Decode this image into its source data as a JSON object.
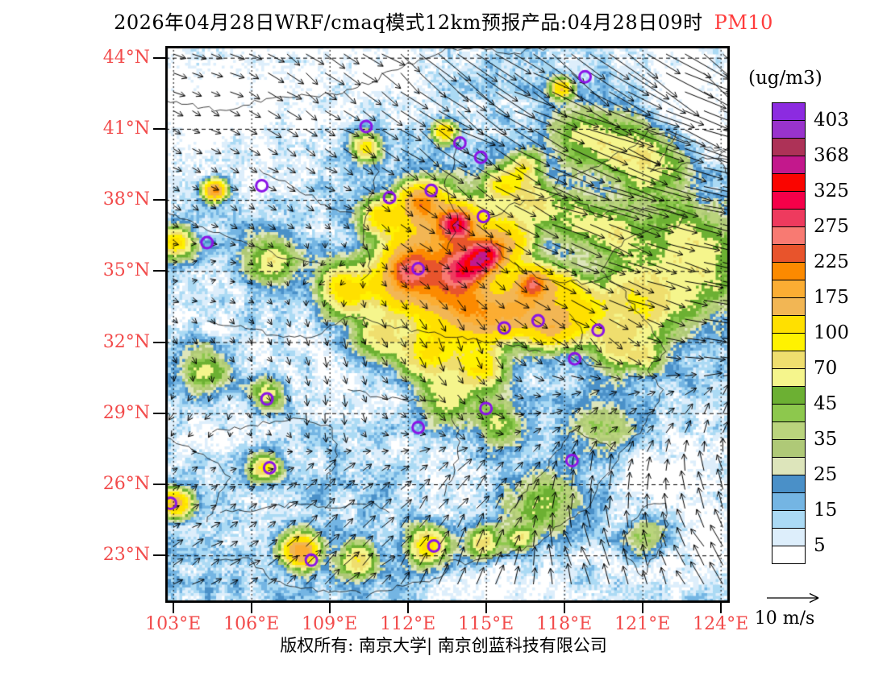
{
  "title": {
    "text": "2026年04月28日WRF/cmaq模式12km预报产品:04月28日09时",
    "pollutant": "PM10"
  },
  "colors": {
    "axis_label": "#F24B4B",
    "pollutant": "#FF3B3B",
    "station": "#8A14E6",
    "boundary": "#101010",
    "arrow": "#000000"
  },
  "axes": {
    "lat_labels": [
      "44°N",
      "41°N",
      "38°N",
      "35°N",
      "32°N",
      "29°N",
      "26°N",
      "23°N"
    ],
    "lat_values": [
      44,
      41,
      38,
      35,
      32,
      29,
      26,
      23
    ],
    "lon_labels": [
      "103°E",
      "106°E",
      "109°E",
      "112°E",
      "115°E",
      "118°E",
      "121°E",
      "124°E"
    ],
    "lon_values": [
      103,
      106,
      109,
      112,
      115,
      118,
      121,
      124
    ]
  },
  "legend": {
    "units_label": "(ug/m3)",
    "tick_labels": [
      "403",
      "368",
      "325",
      "275",
      "225",
      "175",
      "100",
      "70",
      "45",
      "35",
      "25",
      "15",
      "5"
    ],
    "labeled_after_cell": [
      0,
      2,
      4,
      6,
      8,
      10,
      12,
      14,
      16,
      18,
      20,
      22,
      24
    ],
    "cells": [
      "#8C2BE0",
      "#9933CC",
      "#AD3257",
      "#C3188C",
      "#FA0500",
      "#F50049",
      "#EE3A5E",
      "#F87A72",
      "#E8542C",
      "#FC8A00",
      "#FBAD33",
      "#F2B654",
      "#FFE000",
      "#FFF200",
      "#EFDE6E",
      "#F5F58C",
      "#6CB033",
      "#8DC84D",
      "#BAD47D",
      "#AFC977",
      "#DDE5BB",
      "#4A90C8",
      "#74B5E3",
      "#ABDAF4",
      "#DDEEFB",
      "#FFFFFF"
    ]
  },
  "wind_scale": {
    "label": "10 m/s"
  },
  "footer": {
    "text": "版权所有: 南京大学| 南京创蓝科技有限公司"
  },
  "map": {
    "lon_range": [
      102.7,
      124.35
    ],
    "lat_range": [
      21.0,
      44.5
    ],
    "base": 13,
    "thresholds": [
      5,
      10,
      15,
      20,
      25,
      30,
      35,
      40,
      45,
      55,
      70,
      85,
      100,
      137,
      175,
      200,
      225,
      250,
      275,
      300,
      325,
      346,
      368,
      385,
      403
    ],
    "sources": [
      [
        113.2,
        36.3,
        140,
        1.3
      ],
      [
        113.9,
        37.0,
        230,
        0.45
      ],
      [
        115.0,
        35.6,
        220,
        0.5
      ],
      [
        116.8,
        34.5,
        180,
        0.45
      ],
      [
        113.5,
        34.1,
        150,
        1.0
      ],
      [
        111.6,
        34.3,
        100,
        0.8
      ],
      [
        109.6,
        34.2,
        100,
        0.7
      ],
      [
        112.5,
        37.9,
        160,
        0.5
      ],
      [
        114.8,
        33.0,
        130,
        0.8
      ],
      [
        116.4,
        33.4,
        140,
        0.8
      ],
      [
        117.6,
        32.6,
        110,
        0.6
      ],
      [
        118.8,
        33.1,
        80,
        0.7
      ],
      [
        112.8,
        31.5,
        90,
        0.8
      ],
      [
        114.8,
        30.9,
        85,
        0.6
      ],
      [
        112.0,
        35.2,
        120,
        0.6
      ],
      [
        114.2,
        35.1,
        140,
        0.55
      ],
      [
        115.8,
        36.3,
        110,
        0.7
      ],
      [
        118.0,
        34.3,
        80,
        0.6
      ],
      [
        110.9,
        37.3,
        80,
        0.5
      ],
      [
        106.8,
        35.4,
        55,
        0.7
      ],
      [
        110.4,
        40.2,
        90,
        0.4
      ],
      [
        113.4,
        40.9,
        120,
        0.3
      ],
      [
        117.9,
        42.7,
        130,
        0.28
      ],
      [
        104.6,
        38.4,
        200,
        0.28
      ],
      [
        103.1,
        36.2,
        100,
        0.45
      ],
      [
        106.5,
        26.7,
        90,
        0.4
      ],
      [
        103.1,
        25.2,
        150,
        0.4
      ],
      [
        107.9,
        23.2,
        190,
        0.45
      ],
      [
        110.1,
        22.8,
        70,
        0.5
      ],
      [
        112.8,
        23.4,
        100,
        0.55
      ],
      [
        114.9,
        23.5,
        70,
        0.45
      ],
      [
        116.3,
        23.7,
        60,
        0.35
      ],
      [
        104.2,
        30.8,
        50,
        0.7
      ],
      [
        106.6,
        29.8,
        60,
        0.5
      ],
      [
        110.8,
        32.2,
        60,
        0.6
      ],
      [
        113.5,
        29.5,
        50,
        0.7
      ],
      [
        115.5,
        28.6,
        45,
        0.6
      ],
      [
        119.9,
        31.6,
        55,
        0.6
      ],
      [
        121.2,
        31.3,
        45,
        0.5
      ],
      [
        120.0,
        36.6,
        50,
        0.7
      ],
      [
        120.2,
        40.1,
        48,
        1.0
      ],
      [
        121.7,
        39.4,
        42,
        0.9
      ],
      [
        118.6,
        40.7,
        38,
        0.8
      ],
      [
        122.6,
        36.5,
        36,
        1.2
      ],
      [
        123.6,
        34.8,
        30,
        1.2
      ],
      [
        121.9,
        34.0,
        30,
        1.2
      ],
      [
        120.3,
        34.3,
        38,
        0.9
      ],
      [
        120.9,
        32.9,
        40,
        0.8
      ],
      [
        117.2,
        25.1,
        34,
        1.0
      ],
      [
        119.6,
        28.4,
        28,
        0.9
      ],
      [
        121.1,
        23.8,
        40,
        0.6
      ],
      [
        118.4,
        37.3,
        45,
        0.7
      ],
      [
        116.9,
        37.9,
        50,
        0.6
      ],
      [
        116.5,
        39.3,
        60,
        0.5
      ],
      [
        115.6,
        38.6,
        70,
        0.55
      ],
      [
        106.0,
        43.2,
        -13,
        2.8
      ],
      [
        111.5,
        43.9,
        -11,
        1.8
      ],
      [
        103.8,
        41.2,
        -8,
        1.5
      ],
      [
        122.8,
        42.9,
        -12,
        1.9
      ],
      [
        107.2,
        30.7,
        -9,
        1.8
      ],
      [
        104.8,
        28.2,
        -7,
        1.3
      ],
      [
        110.6,
        29.6,
        -6,
        1.1
      ],
      [
        121.6,
        26.7,
        -9,
        1.4
      ],
      [
        123.2,
        23.9,
        -11,
        2.0
      ],
      [
        114.6,
        21.4,
        -8,
        1.4
      ],
      [
        117.6,
        21.3,
        -8,
        1.4
      ],
      [
        103.4,
        33.2,
        -6,
        1.4
      ],
      [
        119.4,
        38.6,
        -10,
        0.55
      ],
      [
        124.0,
        40.6,
        -10,
        1.2
      ],
      [
        113.2,
        25.9,
        -5,
        1.2
      ]
    ],
    "boundaries": [
      [
        [
          124.2,
          40.0
        ],
        [
          122.2,
          40.7
        ],
        [
          121.2,
          40.9
        ],
        [
          120.5,
          40.2
        ],
        [
          119.5,
          39.6
        ],
        [
          118.5,
          39.1
        ],
        [
          117.8,
          39.0
        ],
        [
          117.6,
          38.5
        ],
        [
          118.0,
          38.1
        ],
        [
          118.9,
          37.8
        ],
        [
          119.2,
          37.3
        ],
        [
          120.3,
          37.6
        ],
        [
          121.5,
          37.55
        ],
        [
          122.6,
          37.4
        ],
        [
          122.4,
          36.9
        ],
        [
          121.2,
          36.7
        ],
        [
          120.3,
          36.3
        ],
        [
          119.8,
          35.7
        ],
        [
          119.4,
          35.0
        ],
        [
          120.2,
          34.3
        ],
        [
          120.9,
          33.2
        ],
        [
          121.4,
          32.4
        ],
        [
          121.9,
          31.6
        ],
        [
          121.2,
          30.8
        ],
        [
          121.8,
          30.0
        ],
        [
          121.5,
          29.3
        ],
        [
          121.0,
          28.4
        ],
        [
          120.3,
          27.5
        ],
        [
          119.8,
          26.6
        ],
        [
          119.3,
          26.0
        ],
        [
          118.8,
          24.9
        ],
        [
          118.0,
          24.4
        ],
        [
          117.2,
          23.7
        ],
        [
          116.4,
          23.2
        ],
        [
          115.0,
          22.9
        ],
        [
          114.2,
          22.6
        ],
        [
          113.6,
          22.8
        ],
        [
          113.4,
          22.2
        ],
        [
          112.6,
          21.9
        ],
        [
          111.8,
          21.7
        ],
        [
          110.8,
          21.5
        ],
        [
          110.4,
          21.2
        ]
      ],
      [
        [
          121.9,
          25.2
        ],
        [
          121.0,
          25.0
        ],
        [
          120.3,
          23.8
        ],
        [
          120.4,
          22.9
        ],
        [
          121.0,
          22.1
        ],
        [
          121.6,
          23.2
        ],
        [
          122.0,
          24.3
        ],
        [
          121.9,
          25.2
        ]
      ],
      [
        [
          122.3,
          40.9
        ],
        [
          121.9,
          40.0
        ],
        [
          121.3,
          39.2
        ],
        [
          122.1,
          39.3
        ],
        [
          123.3,
          39.8
        ],
        [
          124.3,
          39.7
        ]
      ],
      [
        [
          102.7,
          42.2
        ],
        [
          104.8,
          41.8
        ],
        [
          106.8,
          42.3
        ],
        [
          109.5,
          42.5
        ],
        [
          111.8,
          43.6
        ],
        [
          113.7,
          44.4
        ],
        [
          116.1,
          44.2
        ],
        [
          117.4,
          44.45
        ]
      ],
      [
        [
          110.4,
          40.3
        ],
        [
          110.9,
          39.2
        ],
        [
          110.5,
          37.8
        ],
        [
          110.3,
          36.3
        ],
        [
          110.6,
          35.0
        ],
        [
          110.2,
          34.6
        ]
      ],
      [
        [
          114.0,
          40.7
        ],
        [
          113.8,
          39.6
        ],
        [
          113.4,
          38.6
        ],
        [
          113.9,
          37.4
        ],
        [
          113.7,
          36.4
        ],
        [
          113.5,
          35.9
        ]
      ],
      [
        [
          104.3,
          32.9
        ],
        [
          105.6,
          32.7
        ],
        [
          106.8,
          32.3
        ],
        [
          108.3,
          32.2
        ],
        [
          109.8,
          33.1
        ],
        [
          111.3,
          32.7
        ],
        [
          112.8,
          32.4
        ],
        [
          114.3,
          32.1
        ],
        [
          115.8,
          31.9
        ],
        [
          117.1,
          31.6
        ]
      ],
      [
        [
          115.4,
          36.0
        ],
        [
          116.3,
          35.0
        ],
        [
          117.6,
          34.6
        ],
        [
          118.9,
          34.5
        ],
        [
          119.9,
          34.9
        ]
      ],
      [
        [
          115.4,
          36.0
        ],
        [
          114.9,
          36.9
        ],
        [
          115.9,
          37.8
        ],
        [
          116.9,
          38.0
        ],
        [
          117.9,
          38.3
        ]
      ],
      [
        [
          113.7,
          29.0
        ],
        [
          114.0,
          27.8
        ],
        [
          113.8,
          26.6
        ],
        [
          113.4,
          25.5
        ]
      ],
      [
        [
          104.5,
          28.2
        ],
        [
          106.0,
          28.5
        ],
        [
          107.6,
          28.8
        ],
        [
          109.1,
          28.4
        ],
        [
          109.3,
          27.2
        ],
        [
          108.9,
          26.2
        ]
      ],
      [
        [
          104.8,
          24.8
        ],
        [
          106.2,
          24.9
        ],
        [
          107.7,
          25.2
        ],
        [
          109.2,
          25.0
        ],
        [
          110.6,
          25.3
        ],
        [
          111.3,
          24.8
        ]
      ],
      [
        [
          118.4,
          28.3
        ],
        [
          117.7,
          27.4
        ],
        [
          117.1,
          26.4
        ],
        [
          116.4,
          25.6
        ],
        [
          115.9,
          24.8
        ]
      ],
      [
        [
          102.7,
          37.6
        ],
        [
          103.9,
          36.9
        ],
        [
          105.2,
          36.4
        ],
        [
          106.4,
          35.9
        ],
        [
          107.4,
          35.5
        ],
        [
          108.7,
          35.3
        ]
      ],
      [
        [
          102.7,
          28.0
        ],
        [
          103.6,
          27.6
        ],
        [
          104.5,
          27.0
        ],
        [
          105.2,
          26.3
        ],
        [
          104.7,
          25.4
        ],
        [
          104.3,
          24.4
        ]
      ],
      [
        [
          109.7,
          30.0
        ],
        [
          110.8,
          29.7
        ],
        [
          112.0,
          29.5
        ],
        [
          113.1,
          29.5
        ]
      ],
      [
        [
          118.2,
          33.2
        ],
        [
          118.7,
          32.4
        ],
        [
          118.4,
          31.5
        ],
        [
          119.1,
          31.0
        ],
        [
          119.8,
          30.9
        ]
      ],
      [
        [
          118.4,
          28.3
        ],
        [
          119.2,
          27.9
        ],
        [
          120.0,
          27.4
        ]
      ],
      [
        [
          106.3,
          39.3
        ],
        [
          107.3,
          38.8
        ],
        [
          108.5,
          38.0
        ],
        [
          109.4,
          37.5
        ],
        [
          110.0,
          37.4
        ]
      ],
      [
        [
          124.35,
          40.3
        ],
        [
          123.9,
          39.7
        ],
        [
          124.35,
          39.0
        ]
      ],
      [
        [
          104.8,
          22.8
        ],
        [
          105.9,
          22.9
        ],
        [
          106.7,
          22.0
        ],
        [
          107.9,
          21.6
        ],
        [
          109.2,
          21.5
        ],
        [
          110.2,
          21.4
        ]
      ]
    ],
    "stations": [
      [
        110.4,
        41.1
      ],
      [
        114.0,
        40.4
      ],
      [
        118.8,
        43.2
      ],
      [
        114.8,
        39.8
      ],
      [
        112.9,
        38.4
      ],
      [
        111.3,
        38.1
      ],
      [
        106.4,
        38.6
      ],
      [
        104.3,
        36.2
      ],
      [
        112.4,
        35.1
      ],
      [
        114.9,
        37.3
      ],
      [
        115.7,
        32.6
      ],
      [
        117.0,
        32.9
      ],
      [
        119.3,
        32.5
      ],
      [
        118.4,
        31.3
      ],
      [
        106.6,
        29.6
      ],
      [
        112.4,
        28.4
      ],
      [
        106.7,
        26.7
      ],
      [
        102.9,
        25.2
      ],
      [
        108.3,
        22.8
      ],
      [
        113.0,
        23.4
      ],
      [
        115.0,
        29.2
      ],
      [
        118.3,
        27.0
      ]
    ],
    "wind_anchors": [
      [
        104,
        44,
        3,
        -1
      ],
      [
        109,
        44,
        4,
        -3
      ],
      [
        114,
        44,
        9,
        -7
      ],
      [
        119,
        44,
        10,
        -8
      ],
      [
        124,
        44,
        9,
        -7
      ],
      [
        104,
        41,
        2,
        -1
      ],
      [
        109,
        41,
        3,
        -2
      ],
      [
        114,
        41,
        8,
        -5
      ],
      [
        119,
        41,
        12,
        -5
      ],
      [
        124,
        41,
        12,
        -4
      ],
      [
        104,
        38,
        1.5,
        -1
      ],
      [
        109,
        38,
        2,
        -1
      ],
      [
        114,
        38,
        4,
        -3
      ],
      [
        119,
        38,
        10,
        -3
      ],
      [
        124,
        38,
        11,
        -2
      ],
      [
        104,
        35,
        1,
        0.5
      ],
      [
        109,
        35,
        -1.5,
        -1
      ],
      [
        114,
        35,
        2,
        -2
      ],
      [
        119,
        35,
        7,
        -3
      ],
      [
        124,
        35,
        9,
        -2
      ],
      [
        104,
        32,
        1,
        -1.5
      ],
      [
        109,
        32,
        0.5,
        -2.5
      ],
      [
        114,
        32,
        1,
        -3.5
      ],
      [
        119,
        32,
        3,
        -3
      ],
      [
        124,
        32,
        6,
        -1
      ],
      [
        104,
        29,
        -1.5,
        -1.5
      ],
      [
        109,
        29,
        0,
        -3
      ],
      [
        114,
        29,
        1.5,
        -2
      ],
      [
        119,
        29,
        2,
        1.5
      ],
      [
        124,
        29,
        1,
        3
      ],
      [
        104,
        26,
        1.5,
        1
      ],
      [
        109,
        26,
        2.5,
        2.5
      ],
      [
        114,
        26,
        3,
        3.5
      ],
      [
        119,
        26,
        0.5,
        4.5
      ],
      [
        124,
        26,
        -1.5,
        4.5
      ],
      [
        104,
        23,
        2.5,
        1.5
      ],
      [
        109,
        23,
        3.5,
        3.5
      ],
      [
        114,
        23,
        2,
        5
      ],
      [
        119,
        23,
        -2,
        5.5
      ],
      [
        124,
        23,
        -3.5,
        5
      ]
    ]
  }
}
